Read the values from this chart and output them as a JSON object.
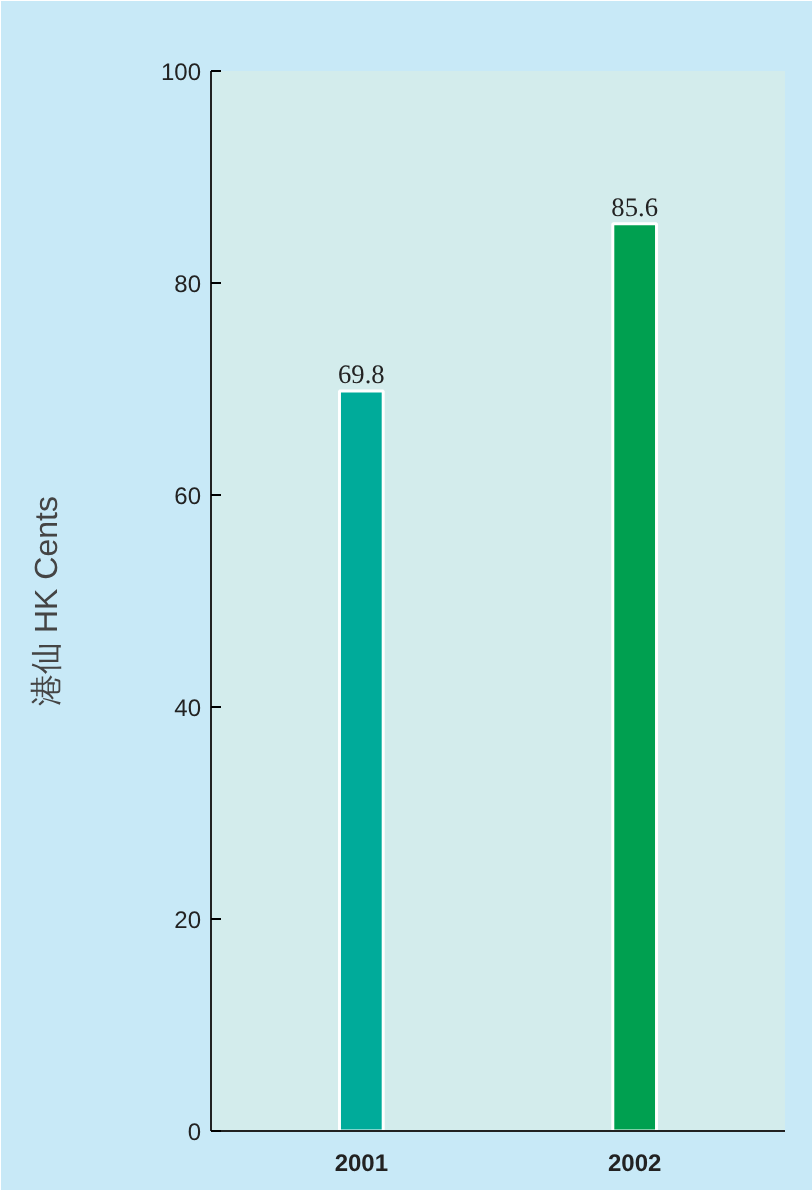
{
  "chart_data": {
    "type": "bar",
    "ylabel": "港仙 HK Cents",
    "categories": [
      "2001",
      "2002"
    ],
    "values": [
      69.8,
      85.6
    ],
    "colors": [
      "#00ab9a",
      "#00a050"
    ],
    "ylim": [
      0,
      100
    ],
    "yticks": [
      0,
      20,
      40,
      60,
      80,
      100
    ],
    "grid": false,
    "data_labels": true
  }
}
